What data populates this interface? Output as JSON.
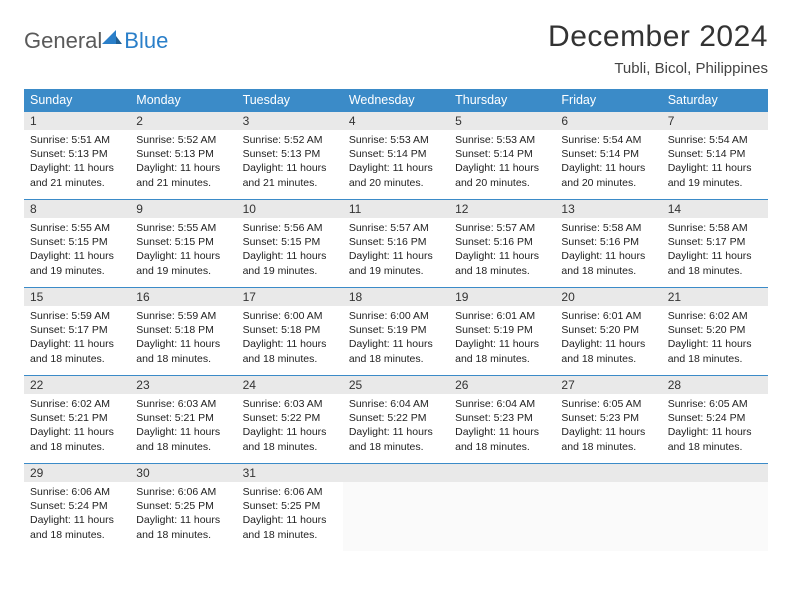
{
  "logo": {
    "general": "General",
    "blue": "Blue"
  },
  "title": "December 2024",
  "location": "Tubli, Bicol, Philippines",
  "colors": {
    "header_bg": "#3b8bc8",
    "header_text": "#ffffff",
    "daynum_bg": "#e9e9e9",
    "border": "#3b8bc8",
    "logo_blue": "#2a7fc9",
    "logo_gray": "#5a5a5a"
  },
  "weekdays": [
    "Sunday",
    "Monday",
    "Tuesday",
    "Wednesday",
    "Thursday",
    "Friday",
    "Saturday"
  ],
  "start_offset": 0,
  "days": [
    {
      "n": 1,
      "sunrise": "5:51 AM",
      "sunset": "5:13 PM",
      "daylight": "11 hours and 21 minutes."
    },
    {
      "n": 2,
      "sunrise": "5:52 AM",
      "sunset": "5:13 PM",
      "daylight": "11 hours and 21 minutes."
    },
    {
      "n": 3,
      "sunrise": "5:52 AM",
      "sunset": "5:13 PM",
      "daylight": "11 hours and 21 minutes."
    },
    {
      "n": 4,
      "sunrise": "5:53 AM",
      "sunset": "5:14 PM",
      "daylight": "11 hours and 20 minutes."
    },
    {
      "n": 5,
      "sunrise": "5:53 AM",
      "sunset": "5:14 PM",
      "daylight": "11 hours and 20 minutes."
    },
    {
      "n": 6,
      "sunrise": "5:54 AM",
      "sunset": "5:14 PM",
      "daylight": "11 hours and 20 minutes."
    },
    {
      "n": 7,
      "sunrise": "5:54 AM",
      "sunset": "5:14 PM",
      "daylight": "11 hours and 19 minutes."
    },
    {
      "n": 8,
      "sunrise": "5:55 AM",
      "sunset": "5:15 PM",
      "daylight": "11 hours and 19 minutes."
    },
    {
      "n": 9,
      "sunrise": "5:55 AM",
      "sunset": "5:15 PM",
      "daylight": "11 hours and 19 minutes."
    },
    {
      "n": 10,
      "sunrise": "5:56 AM",
      "sunset": "5:15 PM",
      "daylight": "11 hours and 19 minutes."
    },
    {
      "n": 11,
      "sunrise": "5:57 AM",
      "sunset": "5:16 PM",
      "daylight": "11 hours and 19 minutes."
    },
    {
      "n": 12,
      "sunrise": "5:57 AM",
      "sunset": "5:16 PM",
      "daylight": "11 hours and 18 minutes."
    },
    {
      "n": 13,
      "sunrise": "5:58 AM",
      "sunset": "5:16 PM",
      "daylight": "11 hours and 18 minutes."
    },
    {
      "n": 14,
      "sunrise": "5:58 AM",
      "sunset": "5:17 PM",
      "daylight": "11 hours and 18 minutes."
    },
    {
      "n": 15,
      "sunrise": "5:59 AM",
      "sunset": "5:17 PM",
      "daylight": "11 hours and 18 minutes."
    },
    {
      "n": 16,
      "sunrise": "5:59 AM",
      "sunset": "5:18 PM",
      "daylight": "11 hours and 18 minutes."
    },
    {
      "n": 17,
      "sunrise": "6:00 AM",
      "sunset": "5:18 PM",
      "daylight": "11 hours and 18 minutes."
    },
    {
      "n": 18,
      "sunrise": "6:00 AM",
      "sunset": "5:19 PM",
      "daylight": "11 hours and 18 minutes."
    },
    {
      "n": 19,
      "sunrise": "6:01 AM",
      "sunset": "5:19 PM",
      "daylight": "11 hours and 18 minutes."
    },
    {
      "n": 20,
      "sunrise": "6:01 AM",
      "sunset": "5:20 PM",
      "daylight": "11 hours and 18 minutes."
    },
    {
      "n": 21,
      "sunrise": "6:02 AM",
      "sunset": "5:20 PM",
      "daylight": "11 hours and 18 minutes."
    },
    {
      "n": 22,
      "sunrise": "6:02 AM",
      "sunset": "5:21 PM",
      "daylight": "11 hours and 18 minutes."
    },
    {
      "n": 23,
      "sunrise": "6:03 AM",
      "sunset": "5:21 PM",
      "daylight": "11 hours and 18 minutes."
    },
    {
      "n": 24,
      "sunrise": "6:03 AM",
      "sunset": "5:22 PM",
      "daylight": "11 hours and 18 minutes."
    },
    {
      "n": 25,
      "sunrise": "6:04 AM",
      "sunset": "5:22 PM",
      "daylight": "11 hours and 18 minutes."
    },
    {
      "n": 26,
      "sunrise": "6:04 AM",
      "sunset": "5:23 PM",
      "daylight": "11 hours and 18 minutes."
    },
    {
      "n": 27,
      "sunrise": "6:05 AM",
      "sunset": "5:23 PM",
      "daylight": "11 hours and 18 minutes."
    },
    {
      "n": 28,
      "sunrise": "6:05 AM",
      "sunset": "5:24 PM",
      "daylight": "11 hours and 18 minutes."
    },
    {
      "n": 29,
      "sunrise": "6:06 AM",
      "sunset": "5:24 PM",
      "daylight": "11 hours and 18 minutes."
    },
    {
      "n": 30,
      "sunrise": "6:06 AM",
      "sunset": "5:25 PM",
      "daylight": "11 hours and 18 minutes."
    },
    {
      "n": 31,
      "sunrise": "6:06 AM",
      "sunset": "5:25 PM",
      "daylight": "11 hours and 18 minutes."
    }
  ],
  "labels": {
    "sunrise": "Sunrise:",
    "sunset": "Sunset:",
    "daylight": "Daylight:"
  }
}
